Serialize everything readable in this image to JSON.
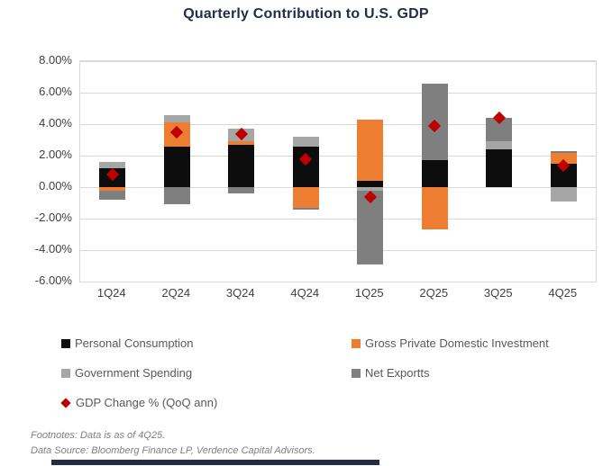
{
  "title": "Quarterly Contribution to U.S. GDP",
  "colors": {
    "title_text": "#242e49",
    "axis_text": "#404040",
    "legend_text": "#595959",
    "gridline": "#d9d9d9",
    "accent_bar": "#232b47"
  },
  "footnotes": {
    "line1": "Footnotes: Data is as of 4Q25.",
    "line2": "Data Source: Bloomberg Finance LP, Verdence Capital Advisors."
  },
  "chart_data": {
    "type": "bar",
    "subtype": "stacked-bars-with-diamond-markers",
    "title": "Quarterly Contribution to U.S. GDP",
    "xlabel": "",
    "ylabel": "",
    "categories": [
      "1Q24",
      "2Q24",
      "3Q24",
      "4Q24",
      "1Q25",
      "2Q25",
      "3Q25",
      "4Q25"
    ],
    "series": [
      {
        "name": "Personal Consumption",
        "color": "#0d0d0d",
        "values": [
          1.2,
          2.6,
          2.7,
          2.6,
          0.4,
          1.7,
          2.4,
          1.5
        ]
      },
      {
        "name": "Gross Private Domestic Investment",
        "color": "#ed7d31",
        "values": [
          -0.2,
          1.5,
          0.2,
          -1.3,
          3.9,
          -2.7,
          0.0,
          0.7
        ]
      },
      {
        "name": "Government Spending",
        "color": "#a6a6a6",
        "values": [
          0.4,
          0.5,
          0.8,
          0.6,
          -0.2,
          0.0,
          0.5,
          -0.9
        ]
      },
      {
        "name": "Net Exportts",
        "color": "#7f7f7f",
        "values": [
          -0.6,
          -1.1,
          -0.4,
          -0.1,
          -4.7,
          4.9,
          1.5,
          0.1
        ]
      }
    ],
    "markers": {
      "name": "GDP Change % (QoQ ann)",
      "color": "#c00000",
      "values": [
        0.8,
        3.5,
        3.4,
        1.8,
        -0.6,
        3.9,
        4.4,
        1.4
      ]
    },
    "ylim": [
      -6,
      8
    ],
    "ytick_step": 2,
    "ytick_suffix": "%",
    "ytick_decimals": 2,
    "grid": true,
    "legend_position": "bottom"
  }
}
